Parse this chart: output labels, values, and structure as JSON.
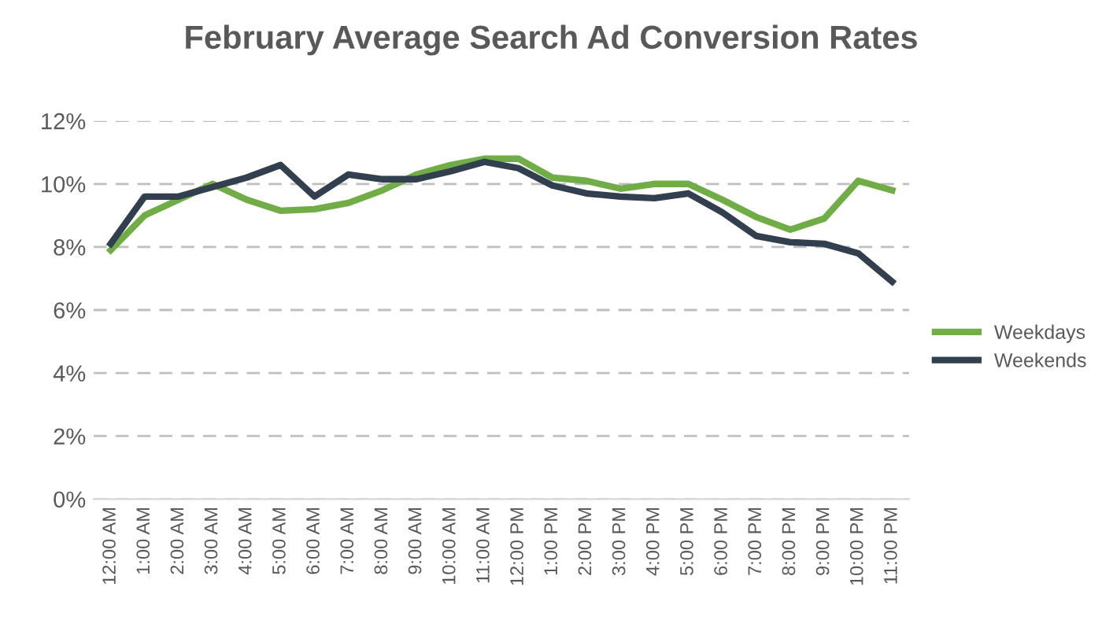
{
  "chart_data": {
    "type": "line",
    "title": "February Average Search Ad Conversion Rates",
    "categories": [
      "12:00 AM",
      "1:00 AM",
      "2:00 AM",
      "3:00 AM",
      "4:00 AM",
      "5:00 AM",
      "6:00 AM",
      "7:00 AM",
      "8:00 AM",
      "9:00 AM",
      "10:00 AM",
      "11:00 AM",
      "12:00 PM",
      "1:00 PM",
      "2:00 PM",
      "3:00 PM",
      "4:00 PM",
      "5:00 PM",
      "6:00 PM",
      "7:00 PM",
      "8:00 PM",
      "9:00 PM",
      "10:00 PM",
      "11:00 PM"
    ],
    "series": [
      {
        "name": "Weekdays",
        "color": "#70ad47",
        "values": [
          7.9,
          9.0,
          9.5,
          10.0,
          9.5,
          9.15,
          9.2,
          9.4,
          9.8,
          10.3,
          10.6,
          10.8,
          10.8,
          10.2,
          10.1,
          9.85,
          10.0,
          10.0,
          9.5,
          8.95,
          8.55,
          8.9,
          10.1,
          9.8
        ]
      },
      {
        "name": "Weekends",
        "color": "#323f4f",
        "values": [
          8.1,
          9.6,
          9.6,
          9.9,
          10.2,
          10.6,
          9.6,
          10.3,
          10.15,
          10.15,
          10.4,
          10.7,
          10.5,
          9.95,
          9.7,
          9.6,
          9.55,
          9.7,
          9.1,
          8.35,
          8.15,
          8.1,
          7.8,
          6.9
        ]
      }
    ],
    "ylim": [
      0,
      12
    ],
    "yticks": [
      {
        "value": 0,
        "label": "0%"
      },
      {
        "value": 2,
        "label": "2%"
      },
      {
        "value": 4,
        "label": "4%"
      },
      {
        "value": 6,
        "label": "6%"
      },
      {
        "value": 8,
        "label": "8%"
      },
      {
        "value": 10,
        "label": "10%"
      },
      {
        "value": 12,
        "label": "12%"
      }
    ],
    "grid": "y",
    "legend": "right",
    "marker": "none",
    "line_style": "solid"
  }
}
